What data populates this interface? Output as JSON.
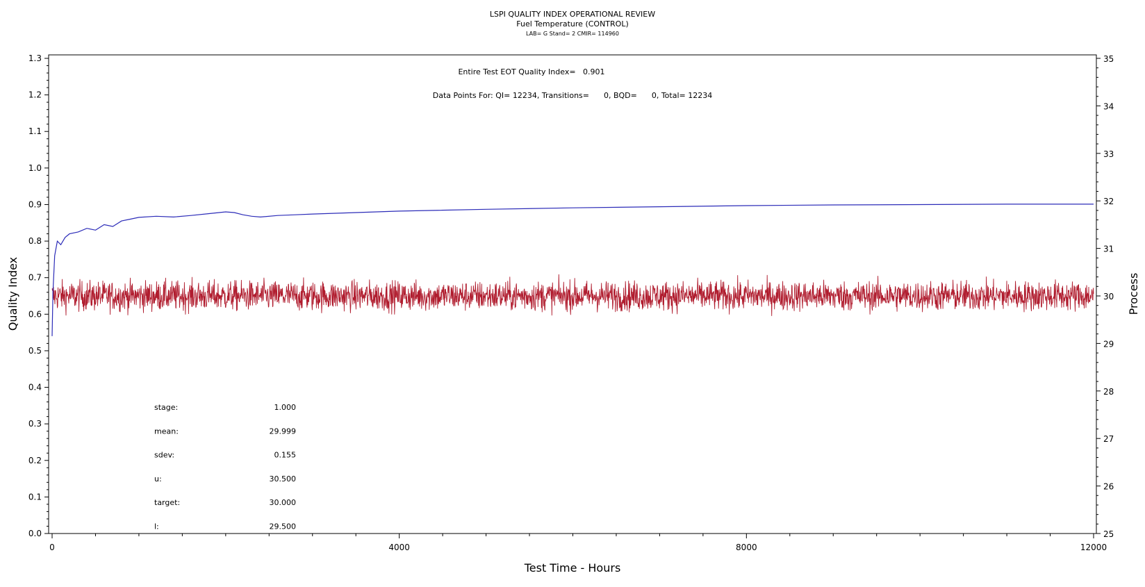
{
  "chart_data": {
    "type": "line",
    "title": "LSPI QUALITY INDEX OPERATIONAL REVIEW",
    "subtitle": "Fuel Temperature (CONTROL)",
    "subsubtitle": "LAB= G Stand= 2 CMIR= 114960",
    "xlabel": "Test Time - Hours",
    "ylabel": "Quality Index",
    "y2label": "Process",
    "xlim": [
      0,
      12000
    ],
    "ylim": [
      0.0,
      1.3
    ],
    "y2lim": [
      25,
      35
    ],
    "xticks": [
      "0",
      "4000",
      "8000",
      "12000"
    ],
    "yticks": [
      "0.0",
      "0.1",
      "0.2",
      "0.3",
      "0.4",
      "0.5",
      "0.6",
      "0.7",
      "0.8",
      "0.9",
      "1.0",
      "1.1",
      "1.2",
      "1.3"
    ],
    "y2ticks": [
      "25",
      "26",
      "27",
      "28",
      "29",
      "30",
      "31",
      "32",
      "33",
      "34",
      "35"
    ],
    "annotations": {
      "qi_text": "Entire Test EOT Quality Index=   0.901",
      "points_text": "Data Points For: QI= 12234, Transitions=      0, BQD=      0, Total= 12234"
    },
    "stats": [
      {
        "label": "stage:",
        "value": "1.000"
      },
      {
        "label": "mean:",
        "value": "29.999"
      },
      {
        "label": "sdev:",
        "value": "0.155"
      },
      {
        "label": "u:",
        "value": "30.500"
      },
      {
        "label": "target:",
        "value": "30.000"
      },
      {
        "label": "l:",
        "value": "29.500"
      }
    ],
    "series": [
      {
        "color": "#2b2bb8",
        "axis": "left",
        "x": [
          0,
          10,
          30,
          60,
          100,
          150,
          200,
          300,
          400,
          500,
          600,
          700,
          800,
          900,
          1000,
          1200,
          1400,
          1600,
          1800,
          2000,
          2100,
          2200,
          2300,
          2400,
          2600,
          2800,
          3000,
          3500,
          4000,
          5000,
          6000,
          7000,
          8000,
          9000,
          10000,
          11000,
          12000
        ],
        "y": [
          0.54,
          0.66,
          0.76,
          0.8,
          0.79,
          0.81,
          0.82,
          0.825,
          0.835,
          0.83,
          0.845,
          0.84,
          0.855,
          0.86,
          0.865,
          0.868,
          0.866,
          0.87,
          0.875,
          0.88,
          0.878,
          0.872,
          0.868,
          0.866,
          0.87,
          0.872,
          0.874,
          0.878,
          0.882,
          0.887,
          0.891,
          0.894,
          0.897,
          0.899,
          0.9,
          0.901,
          0.901
        ]
      },
      {
        "color": "#b01c2e",
        "axis": "right",
        "mean": 29.999,
        "sdev": 0.155,
        "n": 12234,
        "x_range": [
          0,
          12000
        ]
      }
    ]
  }
}
